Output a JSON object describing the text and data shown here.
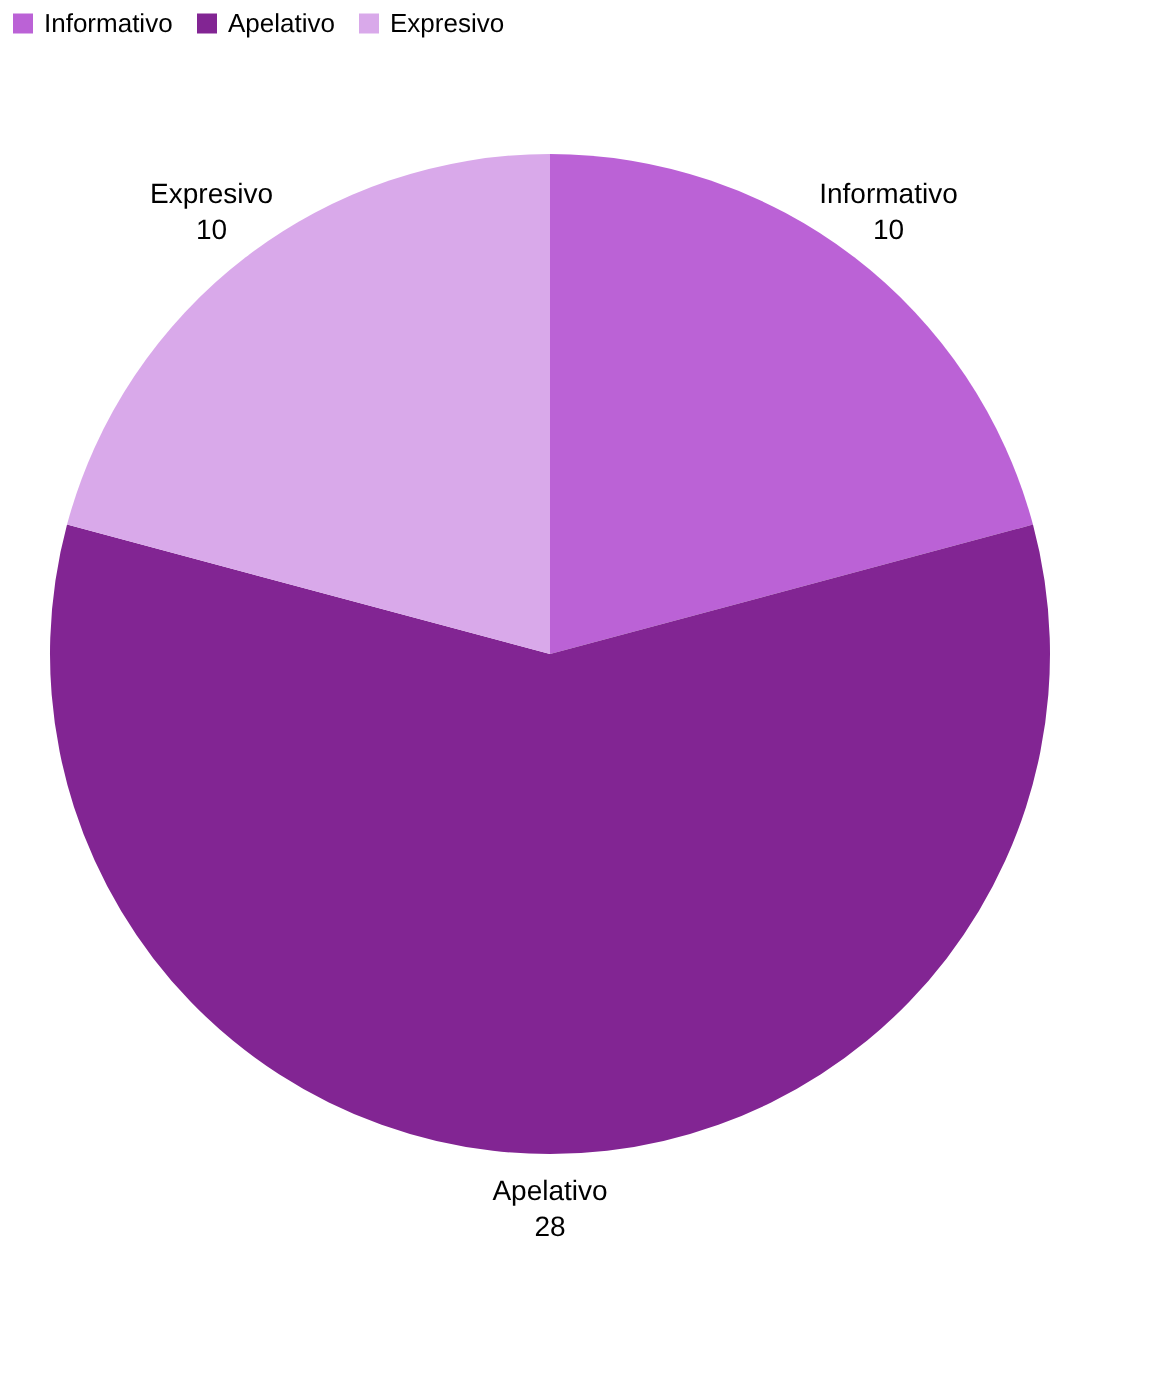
{
  "chart_data": {
    "type": "pie",
    "categories": [
      "Informativo",
      "Apelativo",
      "Expresivo"
    ],
    "values": [
      10,
      28,
      10
    ],
    "colors": [
      "#bb62d6",
      "#822593",
      "#d9a9ea"
    ],
    "data_labels": true,
    "legend": "top"
  }
}
